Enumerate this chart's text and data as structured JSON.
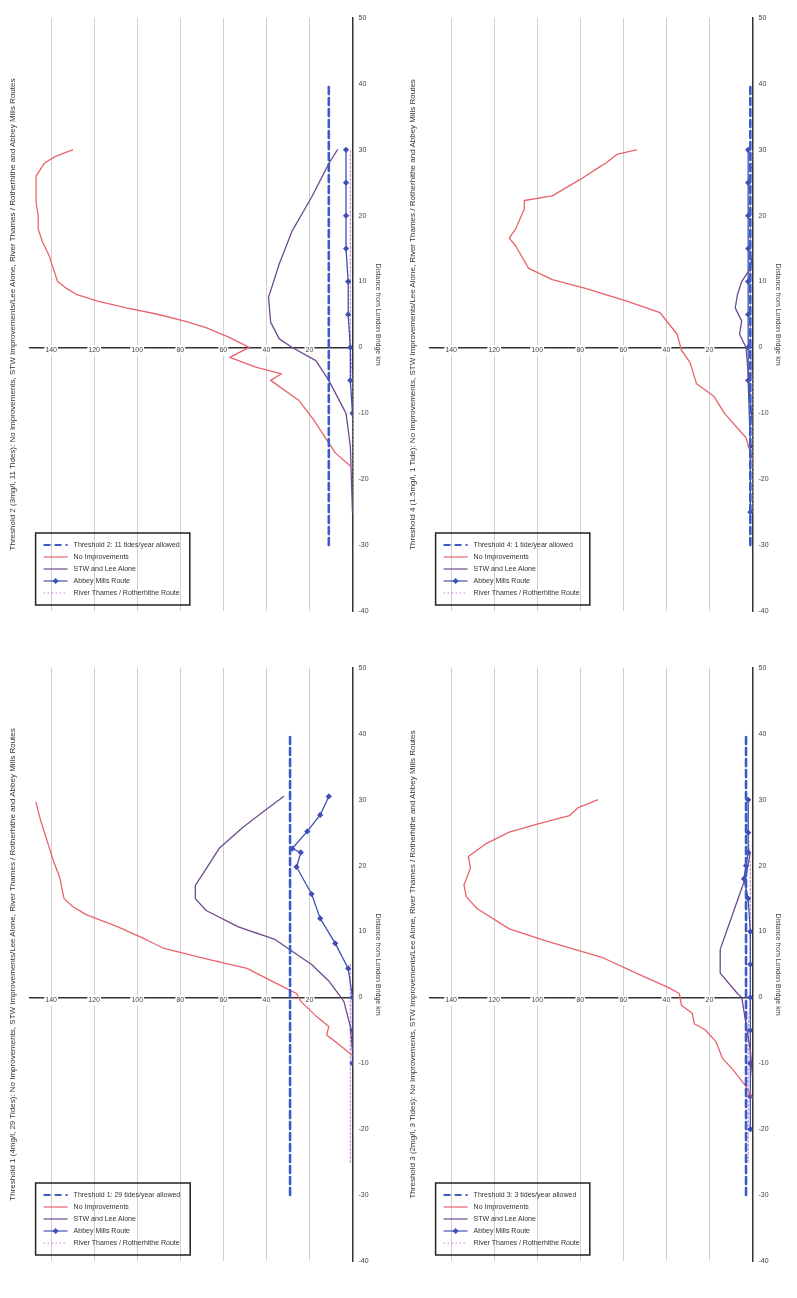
{
  "chart_data": [
    {
      "type": "line",
      "orientation": "horizontal",
      "title": "Threshold 2 (3mg/l, 11 Tides): No Improvements, STW Improvements/Lee Alone, River Thames / Rotherhithe and Abbey Mills Routes",
      "ylabel": "Distance from London Bridge km",
      "xlim": [
        150,
        0
      ],
      "xticks": [
        140,
        120,
        100,
        80,
        60,
        40,
        20
      ],
      "ylim": [
        -40,
        50
      ],
      "yticks": [
        -40,
        -30,
        -20,
        -10,
        0,
        10,
        20,
        30,
        40,
        50
      ],
      "grid": "x",
      "legend": "bottom left",
      "series": [
        {
          "name": "Threshold 2: 11 tides/year allowed",
          "color": "#3b5cc4",
          "line_style": "dashed",
          "marker": "none",
          "x": [
            -30,
            40
          ],
          "values": [
            11,
            11
          ]
        },
        {
          "name": "No Improvements",
          "color": "#e8636b",
          "line_style": "solid",
          "marker": "none",
          "x": [
            -18,
            -16,
            -13,
            -11,
            -8,
            -5,
            -4,
            -3,
            -1.5,
            0,
            1.5,
            3,
            4,
            5,
            6,
            7,
            8,
            9,
            10,
            12,
            14,
            16,
            18,
            20,
            22,
            24,
            26,
            28,
            29,
            30
          ],
          "values": [
            1,
            8,
            14,
            18,
            25,
            38,
            33,
            45,
            57,
            48,
            57,
            68,
            78,
            90,
            105,
            118,
            128,
            133,
            137,
            139,
            141,
            144,
            146,
            146,
            147,
            147,
            147,
            143,
            138,
            130
          ]
        },
        {
          "name": "STW and Lee Alone",
          "color": "#6e4a8e",
          "line_style": "solid",
          "marker": "none",
          "x": [
            -25,
            -15,
            -10,
            -5,
            -2,
            0,
            1.3,
            3.8,
            7.6,
            12.7,
            17.7,
            22.8,
            27.9,
            30
          ],
          "values": [
            0,
            1,
            3,
            11,
            17,
            28,
            34,
            38,
            39,
            34,
            28,
            19,
            11,
            7
          ]
        },
        {
          "name": "Abbey Mills Route",
          "color": "#3f4fb5",
          "line_style": "solid",
          "marker": "diamond",
          "x": [
            -10,
            -5,
            0,
            5,
            10,
            15,
            20,
            25,
            30
          ],
          "values": [
            0,
            1,
            1,
            2,
            2,
            3,
            3,
            3,
            3
          ]
        },
        {
          "name": "River Thames / Rotherhithe Route",
          "color": "#c98ad6",
          "line_style": "dotted",
          "marker": "none",
          "x": [
            -25,
            -15,
            -5,
            0,
            5,
            10,
            15,
            20,
            25,
            30
          ],
          "values": [
            0,
            0,
            0,
            1,
            1,
            1,
            1,
            1,
            1,
            1
          ]
        }
      ]
    },
    {
      "type": "line",
      "orientation": "horizontal",
      "title": "Threshold 4 (1.5mg/l, 1 Tide): No Improvements, STW Improvements/Lee Alone, River Thames / Rotherhithe and Abbey Mills Routes",
      "ylabel": "Distance from London Bridge km",
      "xlim": [
        150,
        0
      ],
      "xticks": [
        140,
        120,
        100,
        80,
        60,
        40,
        20
      ],
      "ylim": [
        -40,
        50
      ],
      "yticks": [
        -40,
        -30,
        -20,
        -10,
        0,
        10,
        20,
        30,
        40,
        50
      ],
      "grid": "x",
      "legend": "bottom left",
      "series": [
        {
          "name": "Threshold 4: 1 tide/year allowed",
          "color": "#3b5cc4",
          "line_style": "dashed",
          "marker": "none",
          "x": [
            -30,
            40
          ],
          "values": [
            1,
            1
          ]
        },
        {
          "name": "No Improvements",
          "color": "#e8636b",
          "line_style": "solid",
          "marker": "none",
          "x": [
            -17,
            -13.7,
            -10,
            -7.4,
            -5.5,
            -2.3,
            -0.4,
            2,
            5.3,
            7,
            9,
            10.3,
            12,
            15.4,
            16.6,
            18,
            21,
            22.3,
            23,
            25.5,
            27.4,
            28,
            29.3,
            30
          ],
          "values": [
            0,
            3,
            13,
            18,
            26,
            29,
            33,
            35,
            43,
            58,
            78,
            93,
            104,
            110,
            113,
            110,
            106,
            106,
            93,
            80,
            71,
            68,
            63,
            54
          ]
        },
        {
          "name": "STW and Lee Alone",
          "color": "#6e4a8e",
          "line_style": "solid",
          "marker": "none",
          "x": [
            -12,
            -8,
            -4,
            0,
            2,
            4,
            6,
            8,
            10,
            12,
            14
          ],
          "values": [
            0,
            1,
            2,
            3,
            6,
            5,
            8,
            7,
            5,
            1,
            0
          ]
        },
        {
          "name": "Abbey Mills Route",
          "color": "#3f4fb5",
          "line_style": "solid",
          "marker": "diamond",
          "x": [
            -25,
            -15,
            -5,
            0,
            5,
            10,
            15,
            20,
            25,
            30
          ],
          "values": [
            1,
            1,
            2,
            2,
            2,
            2,
            2,
            2,
            2,
            2
          ]
        },
        {
          "name": "River Thames / Rotherhithe Route",
          "color": "#c98ad6",
          "line_style": "dotted",
          "marker": "none",
          "x": [
            -25,
            -15,
            -5,
            0,
            5,
            10,
            15,
            20,
            25,
            30
          ],
          "values": [
            0,
            0,
            0,
            1,
            1,
            1,
            1,
            1,
            1,
            0
          ]
        }
      ]
    },
    {
      "type": "line",
      "orientation": "horizontal",
      "title": "Threshold 1 (4mg/l, 29 Tides): No Improvements, STW Improvements/Lee Alone, River Thames / Rotherhithe and Abbey Mills Routes",
      "ylabel": "Distance from London Bridge km",
      "xlim": [
        150,
        0
      ],
      "xticks": [
        140,
        120,
        100,
        80,
        60,
        40,
        20
      ],
      "ylim": [
        -40,
        50
      ],
      "yticks": [
        -40,
        -30,
        -20,
        -10,
        0,
        10,
        20,
        30,
        40,
        50
      ],
      "grid": "x",
      "legend": "bottom left",
      "series": [
        {
          "name": "Threshold 1: 29 tides/year allowed",
          "color": "#3b5cc4",
          "line_style": "dashed",
          "marker": "none",
          "x": [
            -30,
            40
          ],
          "values": [
            29,
            29
          ]
        },
        {
          "name": "No Improvements",
          "color": "#e8636b",
          "line_style": "solid",
          "marker": "none",
          "x": [
            -8.8,
            -7.2,
            -5.7,
            -4.4,
            -2.8,
            -0.6,
            0.6,
            1.9,
            4.4,
            5.7,
            7.5,
            8.8,
            10.7,
            12.6,
            13.8,
            15,
            18.2,
            20.8,
            27,
            29.6
          ],
          "values": [
            0,
            6,
            12,
            11,
            17,
            24,
            26,
            34,
            49,
            66,
            88,
            96,
            109,
            124,
            130,
            134,
            136,
            139,
            145,
            147
          ]
        },
        {
          "name": "STW and Lee Alone",
          "color": "#6e4a8e",
          "line_style": "solid",
          "marker": "none",
          "x": [
            -8,
            -4.4,
            -0.6,
            2.5,
            5,
            8.8,
            10.7,
            13.2,
            15,
            17,
            19.5,
            22.6,
            25.8,
            28.3,
            30.5
          ],
          "values": [
            0,
            1,
            4,
            11,
            19,
            36,
            53,
            68,
            73,
            73,
            68,
            62,
            51,
            41,
            32
          ]
        },
        {
          "name": "Abbey Mills Route",
          "color": "#3f4fb5",
          "line_style": "solid",
          "marker": "diamond",
          "x": [
            -10,
            -5,
            0,
            4.4,
            8.2,
            12,
            15.7,
            19.8,
            22,
            22.6,
            25.2,
            27.7,
            30.5
          ],
          "values": [
            0,
            0,
            0,
            2,
            8,
            15,
            19,
            26,
            24,
            28,
            21,
            15,
            11
          ]
        },
        {
          "name": "River Thames / Rotherhithe Route",
          "color": "#c98ad6",
          "line_style": "dotted",
          "marker": "none",
          "x": [
            -25,
            -20,
            -15,
            -10,
            -5,
            0,
            5
          ],
          "values": [
            1,
            1,
            1,
            1,
            1,
            1,
            1
          ]
        }
      ]
    },
    {
      "type": "line",
      "orientation": "horizontal",
      "title": "Threshold 3 (2mg/l, 3 Tides): No Improvements, STW Improvements/Lee Alone, River Thames / Rotherhithe and Abbey Mills Routes",
      "ylabel": "Distance from London Bridge km",
      "xlim": [
        150,
        0
      ],
      "xticks": [
        140,
        120,
        100,
        80,
        60,
        40,
        20
      ],
      "ylim": [
        -40,
        50
      ],
      "yticks": [
        -40,
        -30,
        -20,
        -10,
        0,
        10,
        20,
        30,
        40,
        50
      ],
      "grid": "x",
      "legend": "bottom left",
      "series": [
        {
          "name": "Threshold 3: 3 tides/year allowed",
          "color": "#3b5cc4",
          "line_style": "dashed",
          "marker": "none",
          "x": [
            -30,
            40
          ],
          "values": [
            3,
            3
          ]
        },
        {
          "name": "No Improvements",
          "color": "#e8636b",
          "line_style": "solid",
          "marker": "none",
          "x": [
            -15.3,
            -13.5,
            -11,
            -9.2,
            -6.7,
            -4.9,
            -4,
            -2.4,
            -1.2,
            0.6,
            1.5,
            3.7,
            6.1,
            8.6,
            10.4,
            13.5,
            15.3,
            17.1,
            19.6,
            21.4,
            23.3,
            25.1,
            26.3,
            27.6,
            28.8,
            30
          ],
          "values": [
            0,
            3,
            9,
            14,
            17,
            22,
            27,
            28,
            33,
            34,
            39,
            54,
            70,
            96,
            113,
            128,
            133,
            134,
            131,
            132,
            124,
            113,
            100,
            85,
            81,
            72
          ]
        },
        {
          "name": "STW and Lee Alone",
          "color": "#6e4a8e",
          "line_style": "solid",
          "marker": "none",
          "x": [
            -12,
            -8,
            -4,
            0,
            0.6,
            3.7,
            7.3,
            11,
            14.7,
            18.4,
            22
          ],
          "values": [
            0,
            1,
            3,
            5,
            7,
            15,
            15,
            11,
            7,
            3,
            1
          ]
        },
        {
          "name": "Abbey Mills Route",
          "color": "#3f4fb5",
          "line_style": "solid",
          "marker": "diamond",
          "x": [
            -20,
            -15,
            -10,
            -5,
            0,
            5,
            10,
            15,
            18,
            20,
            22,
            25,
            30
          ],
          "values": [
            1,
            1,
            1,
            1,
            1,
            1,
            1,
            2,
            4,
            3,
            2,
            2,
            2
          ]
        },
        {
          "name": "River Thames / Rotherhithe Route",
          "color": "#c98ad6",
          "line_style": "dotted",
          "marker": "none",
          "x": [
            -25,
            -15,
            -5,
            0,
            5,
            10,
            15,
            20,
            25,
            30
          ],
          "values": [
            2,
            2,
            2,
            1,
            1,
            1,
            1,
            1,
            2,
            2
          ]
        }
      ]
    }
  ]
}
